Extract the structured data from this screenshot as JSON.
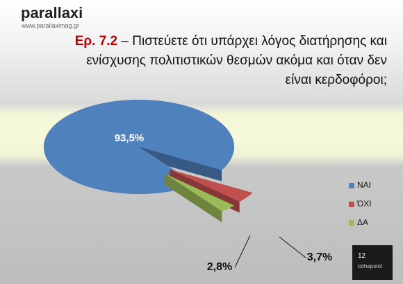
{
  "header": {
    "logo": "parallaxi",
    "url": "www.parallaximag.gr"
  },
  "chart_data": {
    "type": "pie3d",
    "title_label": "Ερ. 7.2",
    "title": "– Πιστεύετε ότι υπάρχει λόγος διατήρησης και ενίσχυσης πολιτιστικών θεσμών ακόμα και όταν δεν είναι κερδοφόροι;",
    "categories": [
      "ΝΑΙ",
      "ΌΧΙ",
      "ΔΑ"
    ],
    "values": [
      93.5,
      3.7,
      2.8
    ],
    "value_labels": [
      "93,5%",
      "3,7%",
      "2,8%"
    ],
    "colors": [
      "#4f81bd",
      "#c0504d",
      "#9bbb59"
    ],
    "legend": "right"
  },
  "footer": {
    "page": 12,
    "brand": "tothepoint"
  }
}
